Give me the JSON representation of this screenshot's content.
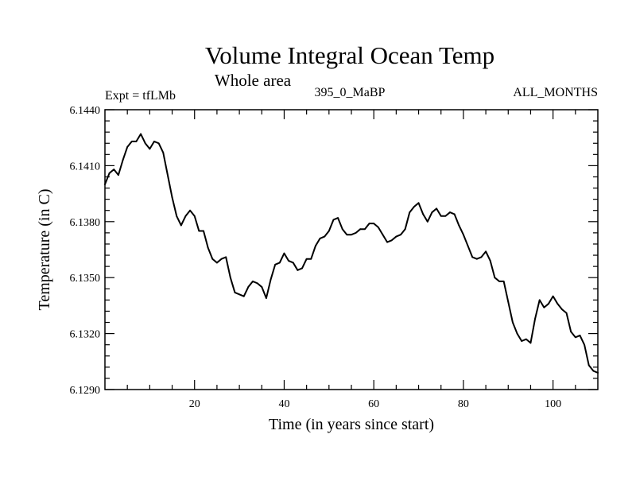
{
  "chart_data": {
    "type": "line",
    "title": "Volume Integral Ocean Temp",
    "subtitle": "Whole area",
    "left_label": "Expt = tfLMb",
    "center_label": "395_0_MaBP",
    "right_label": "ALL_MONTHS",
    "xlabel": "Time (in years since start)",
    "ylabel": "Temperature (in C)",
    "xlim": [
      0,
      110
    ],
    "ylim": [
      6.129,
      6.144
    ],
    "xticks": [
      20,
      40,
      60,
      80,
      100
    ],
    "xtick_labels": [
      "20",
      "40",
      "60",
      "80",
      "100"
    ],
    "yticks": [
      6.129,
      6.132,
      6.135,
      6.138,
      6.141,
      6.144
    ],
    "ytick_labels": [
      "6.1290",
      "6.1320",
      "6.1350",
      "6.1380",
      "6.1410",
      "6.1440"
    ],
    "grid": false,
    "series": [
      {
        "name": "tfLMb",
        "color": "#000000",
        "x": [
          0,
          1,
          2,
          3,
          4,
          5,
          6,
          7,
          8,
          9,
          10,
          11,
          12,
          13,
          14,
          15,
          16,
          17,
          18,
          19,
          20,
          21,
          22,
          23,
          24,
          25,
          26,
          27,
          28,
          29,
          30,
          31,
          32,
          33,
          34,
          35,
          36,
          37,
          38,
          39,
          40,
          41,
          42,
          43,
          44,
          45,
          46,
          47,
          48,
          49,
          50,
          51,
          52,
          53,
          54,
          55,
          56,
          57,
          58,
          59,
          60,
          61,
          62,
          63,
          64,
          65,
          66,
          67,
          68,
          69,
          70,
          71,
          72,
          73,
          74,
          75,
          76,
          77,
          78,
          79,
          80,
          81,
          82,
          83,
          84,
          85,
          86,
          87,
          88,
          89,
          90,
          91,
          92,
          93,
          94,
          95,
          96,
          97,
          98,
          99,
          100,
          101,
          102,
          103,
          104,
          105,
          106,
          107,
          108,
          109,
          110
        ],
        "values": [
          6.14,
          6.1406,
          6.1408,
          6.1405,
          6.1413,
          6.142,
          6.1423,
          6.1423,
          6.1427,
          6.1422,
          6.1419,
          6.1423,
          6.1422,
          6.1417,
          6.1405,
          6.1393,
          6.1383,
          6.1378,
          6.1383,
          6.1386,
          6.1383,
          6.1375,
          6.1375,
          6.1366,
          6.136,
          6.1358,
          6.136,
          6.1361,
          6.135,
          6.1342,
          6.1341,
          6.134,
          6.1345,
          6.1348,
          6.1347,
          6.1345,
          6.1339,
          6.1349,
          6.1357,
          6.1358,
          6.1363,
          6.1359,
          6.1358,
          6.1354,
          6.1355,
          6.136,
          6.136,
          6.1367,
          6.1371,
          6.1372,
          6.1375,
          6.1381,
          6.1382,
          6.1376,
          6.1373,
          6.1373,
          6.1374,
          6.1376,
          6.1376,
          6.1379,
          6.1379,
          6.1377,
          6.1373,
          6.1369,
          6.137,
          6.1372,
          6.1373,
          6.1376,
          6.1385,
          6.1388,
          6.139,
          6.1384,
          6.138,
          6.1385,
          6.1387,
          6.1383,
          6.1383,
          6.1385,
          6.1384,
          6.1378,
          6.1373,
          6.1367,
          6.1361,
          6.136,
          6.1361,
          6.1364,
          6.1359,
          6.135,
          6.1348,
          6.1348,
          6.1337,
          6.1326,
          6.132,
          6.1316,
          6.1317,
          6.1315,
          6.1328,
          6.1338,
          6.1334,
          6.1336,
          6.134,
          6.1336,
          6.1333,
          6.1331,
          6.1321,
          6.1318,
          6.1319,
          6.1314,
          6.1303,
          6.13,
          6.1299
        ]
      }
    ]
  }
}
